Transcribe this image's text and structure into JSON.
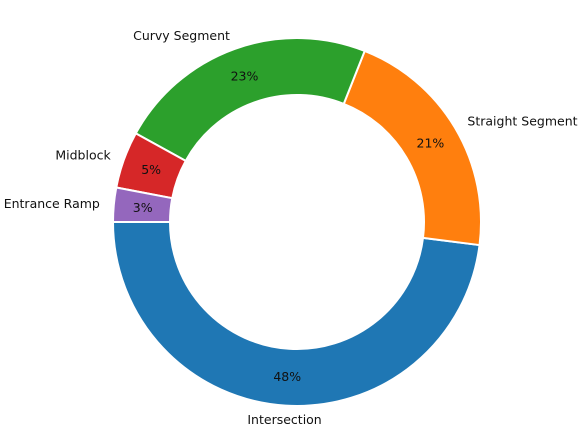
{
  "chart_data": {
    "type": "pie",
    "style": "donut",
    "start_angle_deg": 180,
    "direction": "counterclockwise",
    "slices": [
      {
        "label": "Intersection",
        "value": 48,
        "display": "48%",
        "color": "#1f77b4"
      },
      {
        "label": "Straight Segment",
        "value": 21,
        "display": "21%",
        "color": "#ff7f0e"
      },
      {
        "label": "Curvy Segment",
        "value": 23,
        "display": "23%",
        "color": "#2ca02c"
      },
      {
        "label": "Midblock",
        "value": 5,
        "display": "5%",
        "color": "#d62728"
      },
      {
        "label": "Entrance Ramp",
        "value": 3,
        "display": "3%",
        "color": "#9467bd"
      }
    ],
    "legend": "none"
  }
}
